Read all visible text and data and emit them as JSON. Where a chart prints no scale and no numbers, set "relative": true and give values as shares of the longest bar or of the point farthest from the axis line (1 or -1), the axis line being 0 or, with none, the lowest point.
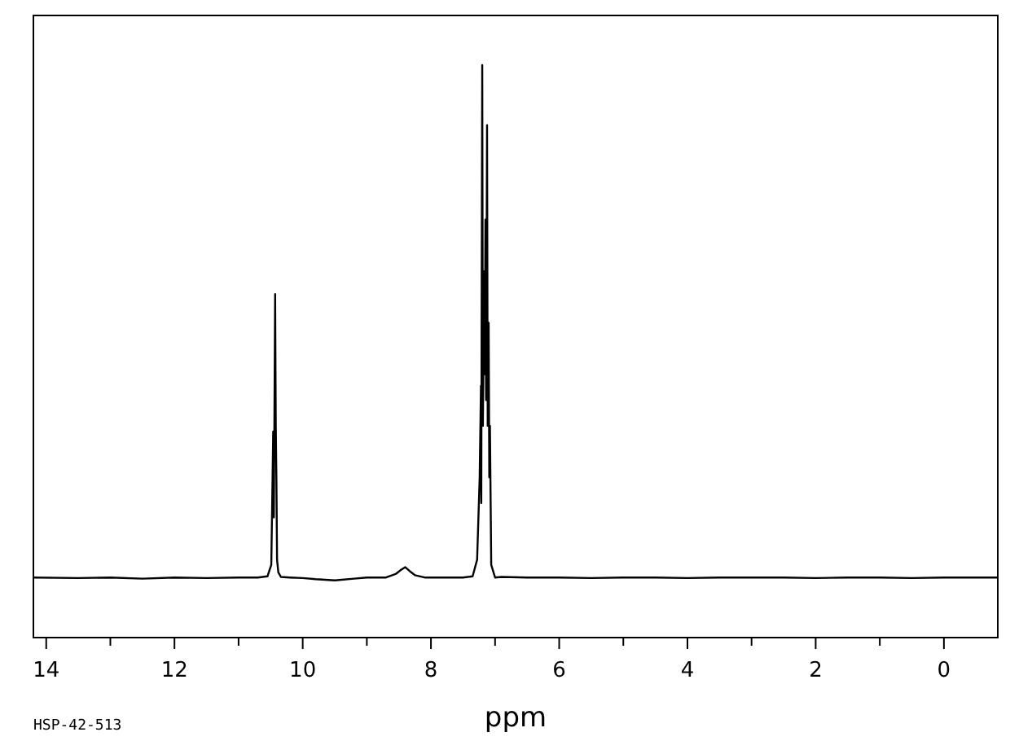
{
  "chart_data": {
    "type": "line",
    "xlabel": "ppm",
    "annotations": [
      "HSP-42-513"
    ],
    "relative": true,
    "color": "#000000",
    "x": [
      14.2,
      13.5,
      13.0,
      12.5,
      12.0,
      11.5,
      11.0,
      10.7,
      10.55,
      10.49,
      10.47,
      10.46,
      10.45,
      10.43,
      10.42,
      10.41,
      10.4,
      10.38,
      10.34,
      10.2,
      10.0,
      9.8,
      9.5,
      9.2,
      9.0,
      8.7,
      8.55,
      8.47,
      8.4,
      8.33,
      8.25,
      8.1,
      7.8,
      7.5,
      7.35,
      7.28,
      7.24,
      7.22,
      7.215,
      7.21,
      7.2,
      7.19,
      7.17,
      7.16,
      7.15,
      7.14,
      7.125,
      7.115,
      7.1,
      7.09,
      7.08,
      7.06,
      7.0,
      6.9,
      6.5,
      6.0,
      5.5,
      5.0,
      4.5,
      4.0,
      3.5,
      3.0,
      2.5,
      2.0,
      1.5,
      1.0,
      0.5,
      0.0,
      -0.5,
      -0.84
    ],
    "values": [
      0.105,
      0.104,
      0.105,
      0.103,
      0.105,
      0.104,
      0.105,
      0.105,
      0.107,
      0.127,
      0.28,
      0.36,
      0.21,
      0.6,
      0.37,
      0.276,
      0.136,
      0.114,
      0.106,
      0.105,
      0.104,
      0.102,
      0.1,
      0.103,
      0.105,
      0.105,
      0.111,
      0.118,
      0.123,
      0.116,
      0.109,
      0.105,
      0.105,
      0.105,
      0.107,
      0.136,
      0.28,
      0.44,
      0.235,
      0.55,
      1.0,
      0.37,
      0.64,
      0.46,
      0.73,
      0.415,
      0.895,
      0.37,
      0.55,
      0.28,
      0.37,
      0.127,
      0.105,
      0.106,
      0.105,
      0.105,
      0.104,
      0.105,
      0.105,
      0.104,
      0.105,
      0.105,
      0.105,
      0.104,
      0.105,
      0.105,
      0.104,
      0.105,
      0.105,
      0.105
    ],
    "xlim": [
      14.2,
      -0.84
    ],
    "xticks": [
      14,
      {
        "value": 13,
        "label": null
      },
      12,
      {
        "value": 11,
        "label": null
      },
      10,
      {
        "value": 9,
        "label": null
      },
      8,
      {
        "value": 7,
        "label": null
      },
      6,
      {
        "value": 5,
        "label": null
      },
      4,
      {
        "value": 3,
        "label": null
      },
      2,
      {
        "value": 1,
        "label": null
      },
      0
    ]
  }
}
